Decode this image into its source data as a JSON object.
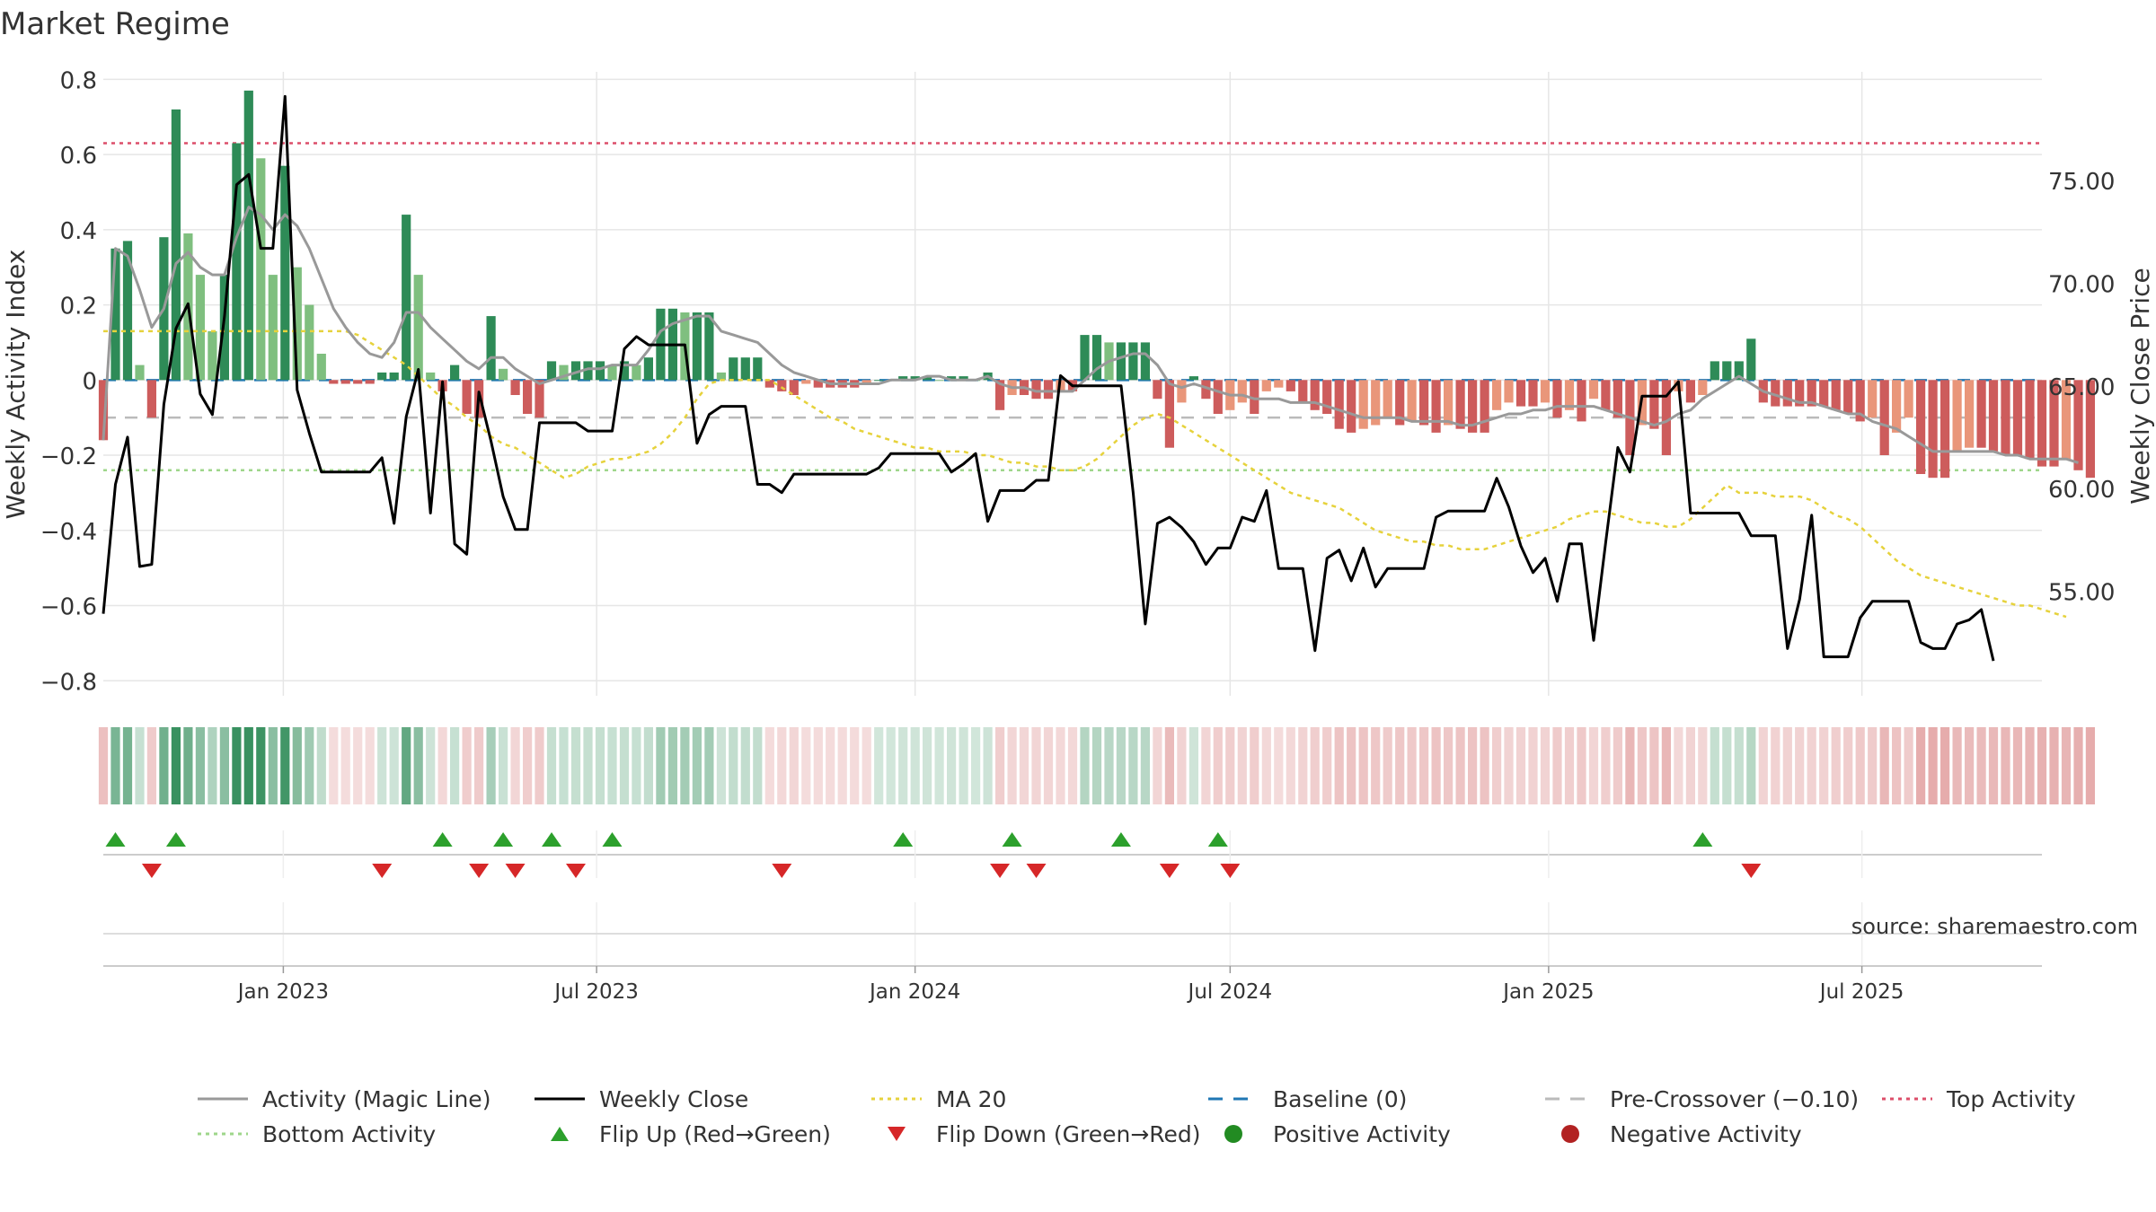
{
  "title": "Market Regime",
  "source": "source: sharemaestro.com",
  "colors": {
    "pos_strong": "#2e8b57",
    "pos_light": "#7fbf7f",
    "neg_strong": "#cd5c5c",
    "neg_light": "#e9967a",
    "close": "#000000",
    "magic": "#999999",
    "ma20": "#e6d23c",
    "baseline": "#1f77b4",
    "pre": "#bbbbbb",
    "top": "#dc4e6a",
    "bottom": "#9ed68a",
    "flip_up": "#2ca02c",
    "flip_down": "#d62728",
    "grid": "#e6e6e6",
    "axis": "#cccccc"
  },
  "chart_data": {
    "type": "bar",
    "title": "Market Regime",
    "ylabel": "Weekly Activity Index",
    "y2label": "Weekly Close Price",
    "ylim": [
      -0.84,
      0.82
    ],
    "yticks": [
      0.8,
      0.6,
      0.4,
      0.2,
      0,
      -0.2,
      -0.4,
      -0.6,
      -0.8
    ],
    "ytick_labels": [
      "0.8",
      "0.6",
      "0.4",
      "0.2",
      "0",
      "−0.2",
      "−0.4",
      "−0.6",
      "−0.8"
    ],
    "y2lim": [
      49.9,
      80.3
    ],
    "y2ticks": [
      75,
      70,
      65,
      60,
      55
    ],
    "y2tick_labels": [
      "75.00",
      "70.00",
      "65.00",
      "60.00",
      "55.00"
    ],
    "x_start": "2022-09-19",
    "x_end": "2025-10-13",
    "xticks": [
      "2023-01-01",
      "2023-07-01",
      "2024-01-01",
      "2024-07-01",
      "2025-01-01",
      "2025-07-01"
    ],
    "xtick_labels": [
      "Jan 2023",
      "Jul 2023",
      "Jan 2024",
      "Jul 2024",
      "Jan 2025",
      "Jul 2025"
    ],
    "reference_lines": {
      "top_activity": 0.63,
      "bottom_activity": -0.24,
      "baseline": 0,
      "pre_crossover": -0.1
    },
    "week_start": "2022-09-19",
    "activity": [
      -0.16,
      0.35,
      0.37,
      0.04,
      -0.1,
      0.38,
      0.72,
      0.39,
      0.28,
      0.13,
      0.28,
      0.63,
      0.77,
      0.59,
      0.28,
      0.57,
      0.3,
      0.2,
      0.07,
      -0.01,
      -0.01,
      -0.01,
      -0.01,
      0.02,
      0.02,
      0.44,
      0.28,
      0.02,
      -0.03,
      0.04,
      -0.09,
      -0.1,
      0.17,
      0.03,
      -0.04,
      -0.09,
      -0.1,
      0.05,
      0.04,
      0.05,
      0.05,
      0.05,
      0.04,
      0.05,
      0.04,
      0.06,
      0.19,
      0.19,
      0.18,
      0.18,
      0.18,
      0.02,
      0.06,
      0.06,
      0.06,
      -0.02,
      -0.03,
      -0.04,
      -0.01,
      -0.02,
      -0.02,
      -0.02,
      -0.02,
      -0.01,
      0.0,
      0.0,
      0.01,
      0.01,
      0.01,
      0.0,
      0.01,
      0.01,
      0.0,
      0.02,
      -0.08,
      -0.04,
      -0.04,
      -0.05,
      -0.05,
      -0.03,
      -0.03,
      0.12,
      0.12,
      0.1,
      0.1,
      0.1,
      0.1,
      -0.05,
      -0.18,
      -0.06,
      0.01,
      -0.05,
      -0.09,
      -0.08,
      -0.06,
      -0.09,
      -0.03,
      -0.02,
      -0.03,
      -0.06,
      -0.08,
      -0.09,
      -0.13,
      -0.14,
      -0.13,
      -0.12,
      -0.1,
      -0.12,
      -0.11,
      -0.12,
      -0.14,
      -0.12,
      -0.13,
      -0.14,
      -0.14,
      -0.08,
      -0.06,
      -0.07,
      -0.07,
      -0.06,
      -0.1,
      -0.08,
      -0.11,
      -0.05,
      -0.08,
      -0.1,
      -0.2,
      -0.12,
      -0.13,
      -0.2,
      -0.03,
      -0.06,
      -0.04,
      0.05,
      0.05,
      0.05,
      0.11,
      -0.06,
      -0.07,
      -0.07,
      -0.07,
      -0.07,
      -0.07,
      -0.08,
      -0.09,
      -0.11,
      -0.1,
      -0.2,
      -0.14,
      -0.1,
      -0.25,
      -0.26,
      -0.26,
      -0.19,
      -0.18,
      -0.18,
      -0.19,
      -0.2,
      -0.2,
      -0.21,
      -0.23,
      -0.23,
      -0.21,
      -0.24,
      -0.26
    ],
    "close": [
      53.9,
      60.2,
      62.5,
      56.2,
      56.3,
      64.1,
      67.8,
      69.0,
      64.6,
      63.6,
      68.4,
      74.8,
      75.3,
      71.7,
      71.7,
      79.1,
      64.8,
      62.7,
      60.8,
      60.8,
      60.8,
      60.8,
      60.8,
      61.5,
      58.3,
      63.5,
      65.8,
      58.8,
      65.2,
      57.3,
      56.8,
      64.7,
      62.3,
      59.6,
      58.0,
      58.0,
      63.2,
      63.2,
      63.2,
      63.2,
      62.8,
      62.8,
      62.8,
      66.8,
      67.4,
      67.0,
      67.0,
      67.0,
      67.0,
      62.2,
      63.6,
      64.0,
      64.0,
      64.0,
      60.2,
      60.2,
      59.8,
      60.7,
      60.7,
      60.7,
      60.7,
      60.7,
      60.7,
      60.7,
      61.0,
      61.7,
      61.7,
      61.7,
      61.7,
      61.7,
      60.8,
      61.2,
      61.7,
      58.4,
      59.9,
      59.9,
      59.9,
      60.4,
      60.4,
      65.5,
      65.0,
      65.0,
      65.0,
      65.0,
      65.0,
      59.8,
      53.4,
      58.3,
      58.6,
      58.1,
      57.4,
      56.3,
      57.1,
      57.1,
      58.6,
      58.4,
      59.9,
      56.1,
      56.1,
      56.1,
      52.1,
      56.6,
      57.0,
      55.5,
      57.1,
      55.2,
      56.1,
      56.1,
      56.1,
      56.1,
      58.6,
      58.9,
      58.9,
      58.9,
      58.9,
      60.5,
      59.1,
      57.2,
      55.9,
      56.6,
      54.5,
      57.3,
      57.3,
      52.6,
      57.4,
      62.0,
      60.8,
      64.5,
      64.5,
      64.5,
      65.2,
      58.8,
      58.8,
      58.8,
      58.8,
      58.8,
      57.7,
      57.7,
      57.7,
      52.2,
      54.6,
      58.7,
      51.8,
      51.8,
      51.8,
      53.7,
      54.5,
      54.5,
      54.5,
      54.5,
      52.5,
      52.2,
      52.2,
      53.4,
      53.6,
      54.1,
      51.6
    ],
    "magic": [
      -0.16,
      0.35,
      0.33,
      0.24,
      0.14,
      0.19,
      0.31,
      0.34,
      0.3,
      0.28,
      0.28,
      0.38,
      0.46,
      0.44,
      0.4,
      0.44,
      0.41,
      0.35,
      0.27,
      0.19,
      0.14,
      0.1,
      0.07,
      0.06,
      0.1,
      0.18,
      0.18,
      0.14,
      0.11,
      0.08,
      0.05,
      0.03,
      0.06,
      0.06,
      0.03,
      0.01,
      -0.01,
      0.0,
      0.01,
      0.02,
      0.03,
      0.03,
      0.04,
      0.04,
      0.04,
      0.08,
      0.13,
      0.15,
      0.16,
      0.17,
      0.17,
      0.13,
      0.12,
      0.11,
      0.1,
      0.07,
      0.04,
      0.02,
      0.01,
      0.0,
      -0.01,
      -0.01,
      -0.01,
      -0.01,
      -0.01,
      0.0,
      0.0,
      0.0,
      0.01,
      0.01,
      0.0,
      0.0,
      0.0,
      0.01,
      -0.01,
      -0.02,
      -0.02,
      -0.03,
      -0.03,
      -0.03,
      -0.03,
      0.0,
      0.03,
      0.05,
      0.06,
      0.07,
      0.07,
      0.04,
      -0.01,
      -0.02,
      -0.01,
      -0.02,
      -0.03,
      -0.04,
      -0.04,
      -0.05,
      -0.05,
      -0.05,
      -0.06,
      -0.06,
      -0.06,
      -0.07,
      -0.08,
      -0.09,
      -0.1,
      -0.1,
      -0.1,
      -0.1,
      -0.11,
      -0.11,
      -0.11,
      -0.11,
      -0.12,
      -0.12,
      -0.11,
      -0.1,
      -0.09,
      -0.09,
      -0.08,
      -0.08,
      -0.07,
      -0.07,
      -0.07,
      -0.07,
      -0.08,
      -0.09,
      -0.1,
      -0.11,
      -0.12,
      -0.11,
      -0.09,
      -0.08,
      -0.05,
      -0.03,
      -0.01,
      0.01,
      -0.01,
      -0.03,
      -0.04,
      -0.05,
      -0.06,
      -0.06,
      -0.07,
      -0.08,
      -0.09,
      -0.09,
      -0.11,
      -0.12,
      -0.13,
      -0.15,
      -0.17,
      -0.19,
      -0.19,
      -0.19,
      -0.19,
      -0.19,
      -0.19,
      -0.2,
      -0.2,
      -0.21,
      -0.21,
      -0.21,
      -0.21,
      -0.22
    ],
    "ma20": [
      0.13,
      0.13,
      0.13,
      0.13,
      0.13,
      0.13,
      0.13,
      0.13,
      0.13,
      0.13,
      0.13,
      0.13,
      0.13,
      0.13,
      0.13,
      0.13,
      0.13,
      0.13,
      0.13,
      0.13,
      0.13,
      0.12,
      0.1,
      0.08,
      0.06,
      0.04,
      0.01,
      -0.02,
      -0.05,
      -0.07,
      -0.1,
      -0.12,
      -0.15,
      -0.17,
      -0.18,
      -0.2,
      -0.22,
      -0.24,
      -0.26,
      -0.25,
      -0.23,
      -0.22,
      -0.21,
      -0.21,
      -0.2,
      -0.19,
      -0.17,
      -0.14,
      -0.1,
      -0.05,
      -0.01,
      0.0,
      0.0,
      0.0,
      0.0,
      0.0,
      -0.02,
      -0.04,
      -0.06,
      -0.08,
      -0.1,
      -0.11,
      -0.13,
      -0.14,
      -0.15,
      -0.16,
      -0.17,
      -0.18,
      -0.18,
      -0.19,
      -0.19,
      -0.19,
      -0.2,
      -0.2,
      -0.21,
      -0.22,
      -0.22,
      -0.23,
      -0.23,
      -0.24,
      -0.24,
      -0.23,
      -0.21,
      -0.18,
      -0.15,
      -0.12,
      -0.1,
      -0.09,
      -0.1,
      -0.12,
      -0.14,
      -0.16,
      -0.18,
      -0.2,
      -0.22,
      -0.24,
      -0.26,
      -0.28,
      -0.3,
      -0.31,
      -0.32,
      -0.33,
      -0.34,
      -0.36,
      -0.38,
      -0.4,
      -0.41,
      -0.42,
      -0.43,
      -0.43,
      -0.44,
      -0.44,
      -0.45,
      -0.45,
      -0.45,
      -0.44,
      -0.43,
      -0.42,
      -0.41,
      -0.4,
      -0.39,
      -0.37,
      -0.36,
      -0.35,
      -0.35,
      -0.36,
      -0.37,
      -0.38,
      -0.38,
      -0.39,
      -0.39,
      -0.37,
      -0.34,
      -0.31,
      -0.28,
      -0.3,
      -0.3,
      -0.3,
      -0.31,
      -0.31,
      -0.31,
      -0.32,
      -0.34,
      -0.36,
      -0.37,
      -0.39,
      -0.42,
      -0.45,
      -0.48,
      -0.5,
      -0.52,
      -0.53,
      -0.54,
      -0.55,
      -0.56,
      -0.57,
      -0.58,
      -0.59,
      -0.6,
      -0.6,
      -0.61,
      -0.62,
      -0.63
    ],
    "flip_up": [
      "2022-09-26",
      "2022-10-31",
      "2023-04-03",
      "2023-05-08",
      "2023-06-05",
      "2023-07-10",
      "2023-12-25",
      "2024-02-26",
      "2024-04-29",
      "2024-06-24",
      "2025-03-31"
    ],
    "flip_down": [
      "2022-10-17",
      "2023-02-27",
      "2023-04-24",
      "2023-05-15",
      "2023-06-19",
      "2023-10-16",
      "2024-02-19",
      "2024-03-11",
      "2024-05-27",
      "2024-07-01",
      "2025-04-28"
    ]
  },
  "legend": [
    {
      "key": "magic",
      "label": "Activity (Magic Line)",
      "kind": "line",
      "color": "#999999"
    },
    {
      "key": "close",
      "label": "Weekly Close",
      "kind": "line",
      "color": "#000000"
    },
    {
      "key": "ma20",
      "label": "MA 20",
      "kind": "dotted",
      "color": "#e6d23c"
    },
    {
      "key": "baseline",
      "label": "Baseline (0)",
      "kind": "dashed",
      "color": "#1f77b4"
    },
    {
      "key": "pre",
      "label": "Pre-Crossover (−0.10)",
      "kind": "dashed",
      "color": "#bbbbbb"
    },
    {
      "key": "top",
      "label": "Top Activity",
      "kind": "dotted",
      "color": "#dc4e6a"
    },
    {
      "key": "bottom",
      "label": "Bottom Activity",
      "kind": "dotted",
      "color": "#9ed68a"
    },
    {
      "key": "flipup",
      "label": "Flip Up (Red→Green)",
      "kind": "tri-up",
      "color": "#2ca02c"
    },
    {
      "key": "flipdown",
      "label": "Flip Down (Green→Red)",
      "kind": "tri-down",
      "color": "#d62728"
    },
    {
      "key": "posact",
      "label": "Positive Activity",
      "kind": "dot",
      "color": "#228b22"
    },
    {
      "key": "negact",
      "label": "Negative Activity",
      "kind": "dot",
      "color": "#b22222"
    }
  ]
}
